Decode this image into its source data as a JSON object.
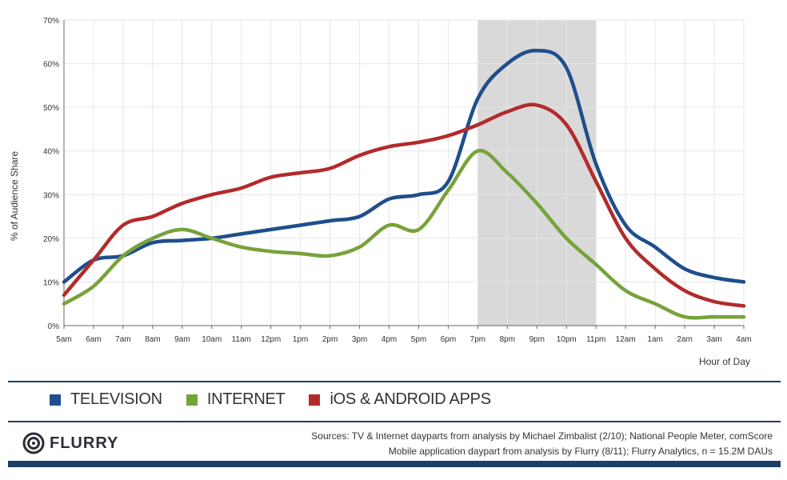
{
  "chart_data": {
    "type": "line",
    "ylabel": "% of Audience Share",
    "xlabel": "Hour of Day",
    "ylim": [
      0,
      70
    ],
    "yticks": [
      0,
      10,
      20,
      30,
      40,
      50,
      60,
      70
    ],
    "ytick_labels": [
      "0%",
      "10%",
      "20%",
      "30%",
      "40%",
      "50%",
      "60%",
      "70%"
    ],
    "categories": [
      "5am",
      "6am",
      "7am",
      "8am",
      "9am",
      "10am",
      "11am",
      "12pm",
      "1pm",
      "2pm",
      "3pm",
      "4pm",
      "5pm",
      "6pm",
      "7pm",
      "8pm",
      "9pm",
      "10pm",
      "11pm",
      "12am",
      "1am",
      "2am",
      "3am",
      "4am"
    ],
    "highlight_range": [
      "7pm",
      "11pm"
    ],
    "grid": true,
    "legend_position": "bottom",
    "series": [
      {
        "name": "TELEVISION",
        "color": "#1f4e8c",
        "values": [
          10,
          15,
          16,
          19,
          19.5,
          20,
          21,
          22,
          23,
          24,
          25,
          29,
          30,
          33,
          52,
          60,
          63,
          59,
          37,
          23,
          18,
          13,
          11,
          10
        ]
      },
      {
        "name": "INTERNET",
        "color": "#77a23a",
        "values": [
          5,
          9,
          16,
          20,
          22,
          20,
          18,
          17,
          16.5,
          16,
          18,
          23,
          22,
          31,
          40,
          35,
          28,
          20,
          14,
          8,
          5,
          2,
          2,
          2
        ]
      },
      {
        "name": "iOS & ANDROID APPS",
        "color": "#b22b2b",
        "values": [
          7,
          15,
          23,
          25,
          28,
          30,
          31.5,
          34,
          35,
          36,
          39,
          41,
          42,
          43.5,
          46,
          49,
          50.5,
          46,
          33,
          20,
          13,
          8,
          5.5,
          4.5
        ]
      }
    ]
  },
  "legend": {
    "television": "TELEVISION",
    "internet": "INTERNET",
    "apps": "iOS & ANDROID APPS"
  },
  "footer": {
    "logo_text": "FLURRY",
    "sources_line1": "Sources: TV & Internet dayparts from analysis by Michael Zimbalist (2/10); National People Meter, comScore",
    "sources_line2": "Mobile application daypart from analysis by Flurry (8/11); Flurry Analytics, n = 15.2M DAUs"
  },
  "colors": {
    "television": "#1f4e8c",
    "internet": "#77a23a",
    "apps": "#b22b2b",
    "highlight": "#d9d9d9",
    "rule": "#1e3f66"
  }
}
